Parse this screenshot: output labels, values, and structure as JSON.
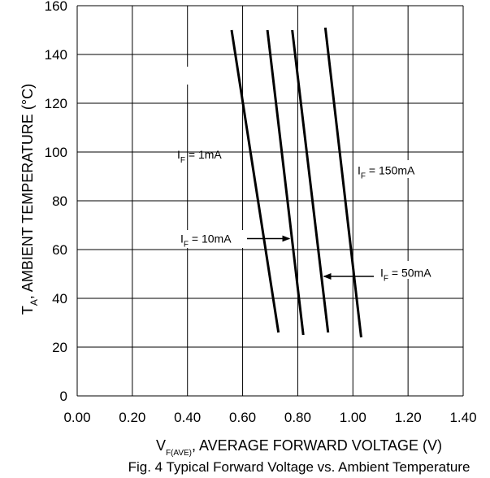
{
  "chart_data": {
    "type": "line",
    "caption": "Fig. 4  Typical Forward Voltage vs. Ambient Temperature",
    "xlabel_main": "V",
    "xlabel_sub": "F(AVE)",
    "xlabel_rest": ", AVERAGE FORWARD VOLTAGE (V)",
    "ylabel_main": "T",
    "ylabel_sub": "A",
    "ylabel_rest": ", AMBIENT TEMPERATURE (°C)",
    "xlim": [
      0.0,
      1.4
    ],
    "ylim": [
      0,
      160
    ],
    "x_ticks": [
      "0.00",
      "0.20",
      "0.40",
      "0.60",
      "0.80",
      "1.00",
      "1.20",
      "1.40"
    ],
    "y_ticks": [
      "0",
      "20",
      "40",
      "60",
      "80",
      "100",
      "120",
      "140",
      "160"
    ],
    "grid": true,
    "series": [
      {
        "name": "1mA",
        "points": [
          [
            0.56,
            150
          ],
          [
            0.73,
            26
          ]
        ]
      },
      {
        "name": "10mA",
        "points": [
          [
            0.69,
            150
          ],
          [
            0.82,
            25
          ]
        ]
      },
      {
        "name": "50mA",
        "points": [
          [
            0.78,
            150
          ],
          [
            0.91,
            26
          ]
        ]
      },
      {
        "name": "150mA",
        "points": [
          [
            0.9,
            151
          ],
          [
            1.03,
            24
          ]
        ]
      }
    ],
    "annotations": [
      {
        "prefix": "I",
        "sub": "F",
        "text": " = 1mA",
        "series": "1mA"
      },
      {
        "prefix": "I",
        "sub": "F",
        "text": " = 10mA",
        "series": "10mA"
      },
      {
        "prefix": "I",
        "sub": "F",
        "text": " = 50mA",
        "series": "50mA"
      },
      {
        "prefix": "I",
        "sub": "F",
        "text": " = 150mA",
        "series": "150mA"
      }
    ]
  }
}
